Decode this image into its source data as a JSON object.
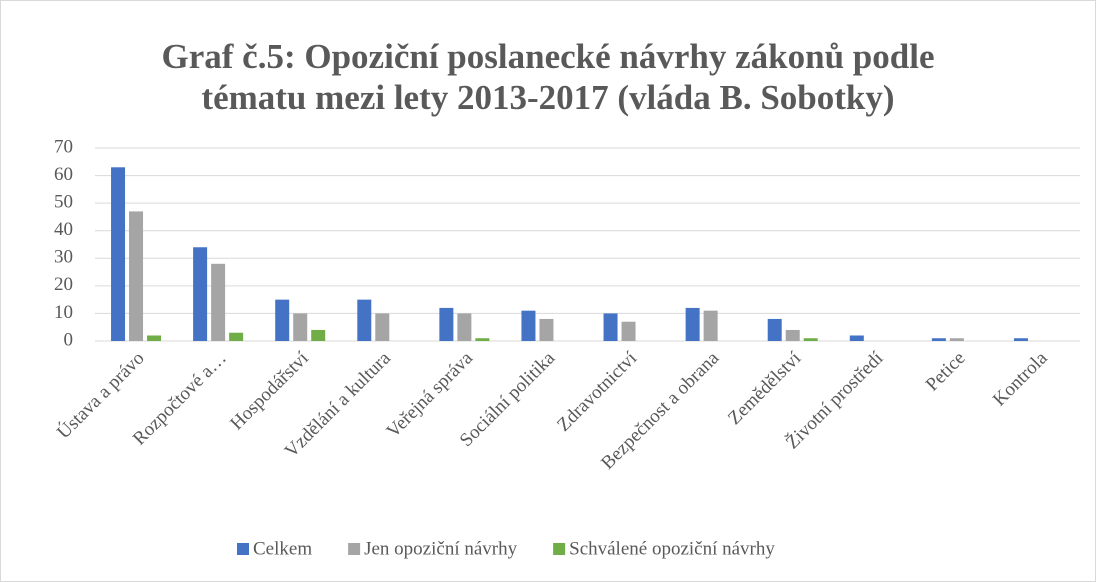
{
  "chart_data": {
    "type": "bar",
    "title": [
      "Graf č.5: Opoziční poslanecké návrhy zákonů podle",
      "tématu mezi lety 2013-2017 (vláda B. Sobotky)"
    ],
    "categories": [
      "Ústava a právo",
      "Rozpočtové a…",
      "Hospodářství",
      "Vzdělání a kultura",
      "Veřejná správa",
      "Sociální politika",
      "Zdravotnictví",
      "Bezpečnost a obrana",
      "Zemědělství",
      "Životní prostředí",
      "Petice",
      "Kontrola"
    ],
    "series": [
      {
        "name": "Celkem",
        "color": "#4472c4",
        "values": [
          63,
          34,
          15,
          15,
          12,
          11,
          10,
          12,
          8,
          2,
          1,
          1
        ]
      },
      {
        "name": "Jen opoziční návrhy",
        "color": "#a5a5a5",
        "values": [
          47,
          28,
          10,
          10,
          10,
          8,
          7,
          11,
          4,
          0,
          1,
          0
        ]
      },
      {
        "name": "Schválené opoziční návrhy",
        "color": "#70ad47",
        "values": [
          2,
          3,
          4,
          0,
          1,
          0,
          0,
          0,
          1,
          0,
          0,
          0
        ]
      }
    ],
    "ylim": [
      0,
      70
    ],
    "yticks": [
      0,
      10,
      20,
      30,
      40,
      50,
      60,
      70
    ],
    "grid": true,
    "legend": "bottom"
  }
}
